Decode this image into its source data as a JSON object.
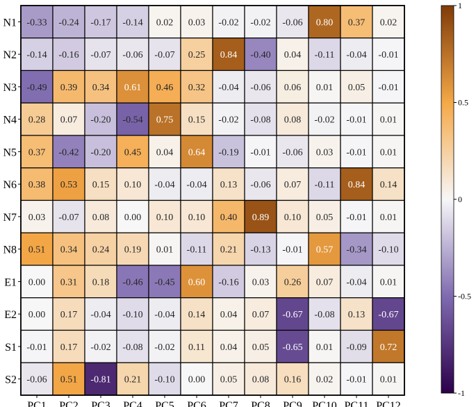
{
  "chart_data": {
    "type": "heatmap",
    "rows": [
      "N1",
      "N2",
      "N3",
      "N4",
      "N5",
      "N6",
      "N7",
      "N8",
      "E1",
      "E2",
      "S1",
      "S2"
    ],
    "columns": [
      "PC1",
      "PC2",
      "PC3",
      "PC4",
      "PC5",
      "PC6",
      "PC7",
      "PC8",
      "PC9",
      "PC10",
      "PC11",
      "PC12"
    ],
    "values": [
      [
        -0.33,
        -0.24,
        -0.17,
        -0.14,
        0.02,
        0.03,
        -0.02,
        -0.02,
        -0.06,
        0.8,
        0.37,
        0.02
      ],
      [
        -0.14,
        -0.16,
        -0.07,
        -0.06,
        -0.07,
        0.25,
        0.84,
        -0.4,
        0.04,
        -0.11,
        -0.04,
        -0.01
      ],
      [
        -0.49,
        0.39,
        0.34,
        0.61,
        0.46,
        0.32,
        -0.04,
        -0.06,
        0.06,
        0.01,
        0.05,
        -0.01
      ],
      [
        0.28,
        0.07,
        -0.2,
        -0.54,
        0.75,
        0.15,
        -0.02,
        -0.08,
        0.08,
        -0.02,
        -0.01,
        0.01
      ],
      [
        0.37,
        -0.42,
        -0.2,
        0.45,
        0.04,
        0.64,
        -0.19,
        -0.01,
        -0.06,
        0.03,
        -0.01,
        0.01
      ],
      [
        0.38,
        0.53,
        0.15,
        0.1,
        -0.04,
        -0.04,
        0.13,
        -0.06,
        0.07,
        -0.11,
        0.84,
        0.14
      ],
      [
        0.03,
        -0.07,
        0.08,
        0.0,
        0.1,
        0.1,
        0.4,
        0.89,
        0.1,
        0.05,
        -0.01,
        0.01
      ],
      [
        0.51,
        0.34,
        0.24,
        0.19,
        0.01,
        -0.11,
        0.21,
        -0.13,
        -0.01,
        0.57,
        -0.34,
        -0.1
      ],
      [
        0.0,
        0.31,
        0.18,
        -0.46,
        -0.45,
        0.6,
        -0.16,
        0.03,
        0.26,
        0.07,
        -0.04,
        0.01
      ],
      [
        0.0,
        0.17,
        -0.04,
        -0.1,
        -0.04,
        0.14,
        0.04,
        0.07,
        -0.67,
        -0.08,
        0.13,
        -0.67
      ],
      [
        -0.01,
        0.17,
        -0.02,
        -0.08,
        -0.02,
        0.11,
        0.04,
        0.05,
        -0.65,
        0.01,
        -0.09,
        0.72
      ],
      [
        -0.06,
        0.51,
        -0.81,
        0.21,
        -0.1,
        0.0,
        0.05,
        0.08,
        0.16,
        0.02,
        -0.01,
        0.01
      ]
    ],
    "color_range": [
      -1,
      1
    ],
    "colorbar_ticks": [
      "1",
      "0.5",
      "0",
      "-0.5",
      "-1"
    ],
    "colorbar_tick_values": [
      1,
      0.5,
      0,
      -0.5,
      -1
    ],
    "colormap": [
      "#2d004b",
      "#7f6bb0",
      "#f7f7f7",
      "#f5a847",
      "#7f3b08"
    ],
    "legend_placement": "right",
    "grid": true
  }
}
